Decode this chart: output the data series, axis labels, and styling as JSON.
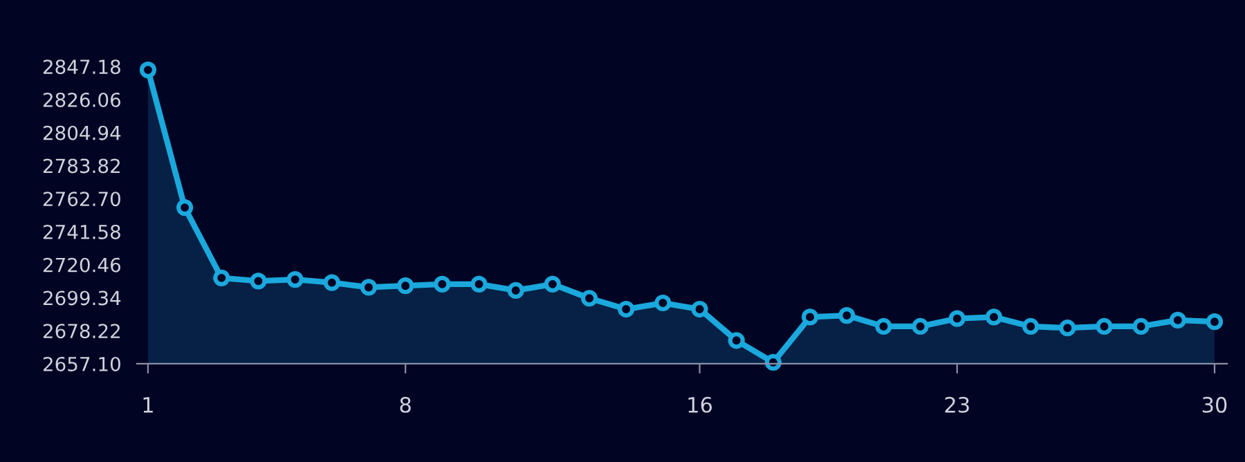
{
  "chart_data": {
    "type": "area",
    "x": [
      1,
      2,
      3,
      4,
      5,
      6,
      7,
      8,
      9,
      10,
      11,
      12,
      13,
      14,
      15,
      16,
      17,
      18,
      19,
      20,
      21,
      22,
      23,
      24,
      25,
      26,
      27,
      28,
      29,
      30
    ],
    "series": [
      {
        "color": "#1ba8dc",
        "values": [
          2845,
          2757,
          2712,
          2710,
          2711,
          2709,
          2706,
          2707,
          2708,
          2708,
          2704,
          2708,
          2699,
          2692,
          2696,
          2692,
          2672,
          2658,
          2687,
          2688,
          2681,
          2681,
          2686,
          2687,
          2681,
          2680,
          2681,
          2681,
          2685,
          2684
        ]
      }
    ],
    "xlim": [
      0.7,
      30.34
    ],
    "xticks": [
      1,
      8,
      16,
      23,
      30
    ],
    "ylim": [
      2657.1,
      2847.18
    ],
    "yticks": [
      {
        "value": 2657.1,
        "label": "2657.10"
      },
      {
        "value": 2678.22,
        "label": "2678.22"
      },
      {
        "value": 2699.34,
        "label": "2699.34"
      },
      {
        "value": 2720.46,
        "label": "2720.46"
      },
      {
        "value": 2741.58,
        "label": "2741.58"
      },
      {
        "value": 2762.7,
        "label": "2762.70"
      },
      {
        "value": 2783.82,
        "label": "2783.82"
      },
      {
        "value": 2804.94,
        "label": "2804.94"
      },
      {
        "value": 2826.06,
        "label": "2826.06"
      },
      {
        "value": 2847.18,
        "label": "2847.18"
      }
    ],
    "marker": "circle",
    "line_style": "solid",
    "grid": false
  }
}
